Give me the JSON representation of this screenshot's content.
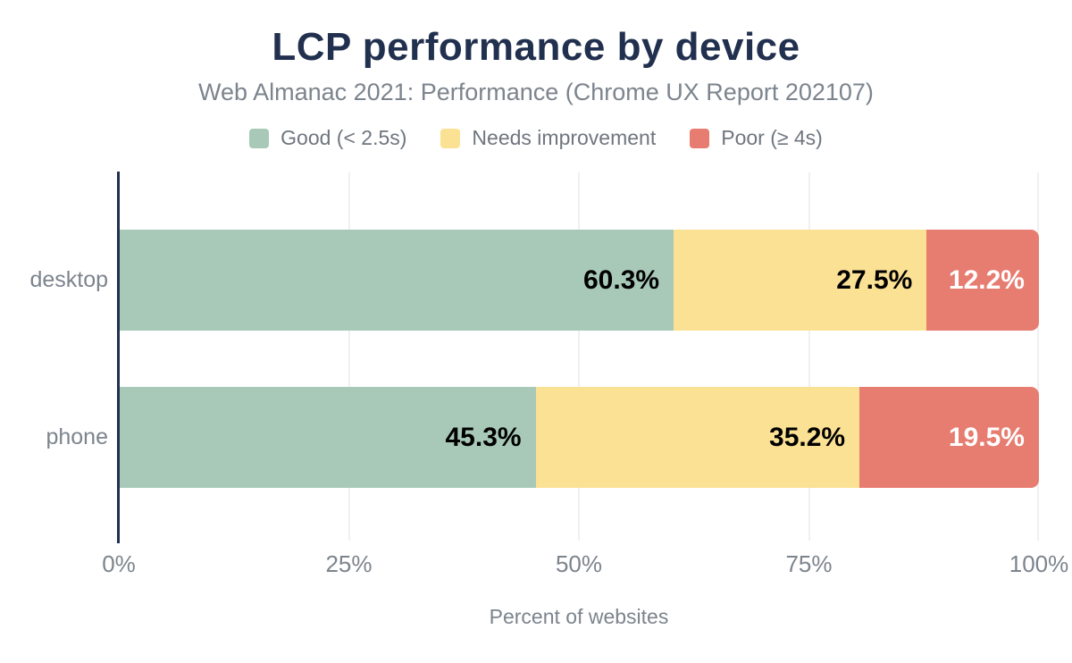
{
  "title": "LCP performance by device",
  "subtitle": "Web Almanac 2021: Performance (Chrome UX Report 202107)",
  "legend": {
    "items": [
      {
        "label": "Good (< 2.5s)",
        "color": "#a8c9b8"
      },
      {
        "label": "Needs improvement",
        "color": "#fbe193"
      },
      {
        "label": "Poor (≥ 4s)",
        "color": "#e77c70"
      }
    ]
  },
  "bars": [
    {
      "category": "desktop",
      "segments": [
        {
          "label": "60.3%",
          "value": 60.3,
          "color": "#a8c9b8",
          "text_color": "#000000"
        },
        {
          "label": "27.5%",
          "value": 27.5,
          "color": "#fbe193",
          "text_color": "#000000"
        },
        {
          "label": "12.2%",
          "value": 12.2,
          "color": "#e77c70",
          "text_color": "#ffffff"
        }
      ]
    },
    {
      "category": "phone",
      "segments": [
        {
          "label": "45.3%",
          "value": 45.3,
          "color": "#a8c9b8",
          "text_color": "#000000"
        },
        {
          "label": "35.2%",
          "value": 35.2,
          "color": "#fbe193",
          "text_color": "#000000"
        },
        {
          "label": "19.5%",
          "value": 19.5,
          "color": "#e77c70",
          "text_color": "#ffffff"
        }
      ]
    }
  ],
  "x_axis": {
    "ticks": [
      "0%",
      "25%",
      "50%",
      "75%",
      "100%"
    ],
    "label": "Percent of websites"
  },
  "colors": {
    "title_navy": "#22304f",
    "axis_line": "#22304f",
    "text_gray": "#7c848d",
    "gridline": "#f0f0f0",
    "background": "#ffffff"
  },
  "chart_data": {
    "type": "bar",
    "orientation": "horizontal",
    "stacked": true,
    "title": "LCP performance by device",
    "subtitle": "Web Almanac 2021: Performance (Chrome UX Report 202107)",
    "categories": [
      "desktop",
      "phone"
    ],
    "series": [
      {
        "name": "Good (< 2.5s)",
        "values": [
          60.3,
          45.3
        ],
        "color": "#a8c9b8"
      },
      {
        "name": "Needs improvement",
        "values": [
          27.5,
          35.2
        ],
        "color": "#fbe193"
      },
      {
        "name": "Poor (≥ 4s)",
        "values": [
          12.2,
          19.5
        ],
        "color": "#e77c70"
      }
    ],
    "xlabel": "Percent of websites",
    "ylabel": "",
    "xlim": [
      0,
      100
    ],
    "x_ticks": [
      "0%",
      "25%",
      "50%",
      "75%",
      "100%"
    ],
    "legend_position": "top",
    "grid": "vertical",
    "data_labels": "inside-end"
  }
}
